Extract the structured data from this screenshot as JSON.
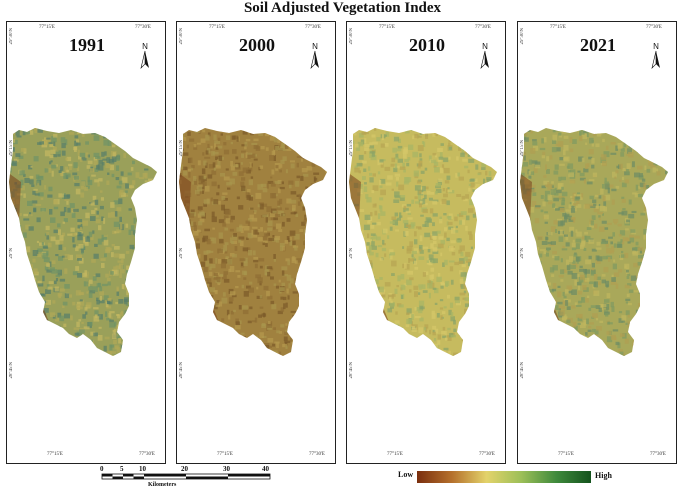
{
  "title": "Soil Adjusted Vegetation Index",
  "panels": [
    {
      "year": "1991",
      "colors": [
        "#9aa05a",
        "#6f9366",
        "#c4b861",
        "#567e6a",
        "#b1a857"
      ],
      "tick_top_left": "77°15'E",
      "tick_top_right": "77°30'E",
      "tick_bottom_left": "77°15'E",
      "tick_bottom_right": "77°30'E",
      "tick_left_1": "29°30'N",
      "tick_left_2": "29°15'N",
      "tick_left_3": "29°N",
      "tick_left_4": "28°45'N"
    },
    {
      "year": "2000",
      "colors": [
        "#a0813f",
        "#8e6d34",
        "#b59a4f",
        "#7a5a2a",
        "#a8964d"
      ],
      "tick_top_left": "77°15'E",
      "tick_top_right": "77°30'E",
      "tick_bottom_left": "77°15'E",
      "tick_bottom_right": "77°30'E",
      "tick_left_1": "29°30'N",
      "tick_left_2": "29°15'N",
      "tick_left_3": "29°N",
      "tick_left_4": "28°45'N"
    },
    {
      "year": "2010",
      "colors": [
        "#c6bb5f",
        "#a6b565",
        "#d6c869",
        "#87a268",
        "#b7a452"
      ],
      "tick_top_left": "77°15'E",
      "tick_top_right": "77°30'E",
      "tick_bottom_left": "77°15'E",
      "tick_bottom_right": "77°30'E",
      "tick_left_1": "29°30'N",
      "tick_left_2": "29°15'N",
      "tick_left_3": "29°N",
      "tick_left_4": "28°45'N"
    },
    {
      "year": "2021",
      "colors": [
        "#a9a85a",
        "#7f9a61",
        "#c1b65e",
        "#6c8c64",
        "#b09e51"
      ],
      "tick_top_left": "77°15'E",
      "tick_top_right": "77°30'E",
      "tick_bottom_left": "77°15'E",
      "tick_bottom_right": "77°30'E",
      "tick_left_1": "29°30'N",
      "tick_left_2": "29°15'N",
      "tick_left_3": "29°N",
      "tick_left_4": "28°45'N"
    }
  ],
  "north_label": "N",
  "scale": {
    "labels": [
      "0",
      "5",
      "10",
      "20",
      "30",
      "40"
    ],
    "unit": "Kilometers"
  },
  "legend": {
    "low": "Low",
    "high": "High",
    "colors": [
      "#7a2e0e",
      "#e3d36a",
      "#14531d"
    ]
  }
}
